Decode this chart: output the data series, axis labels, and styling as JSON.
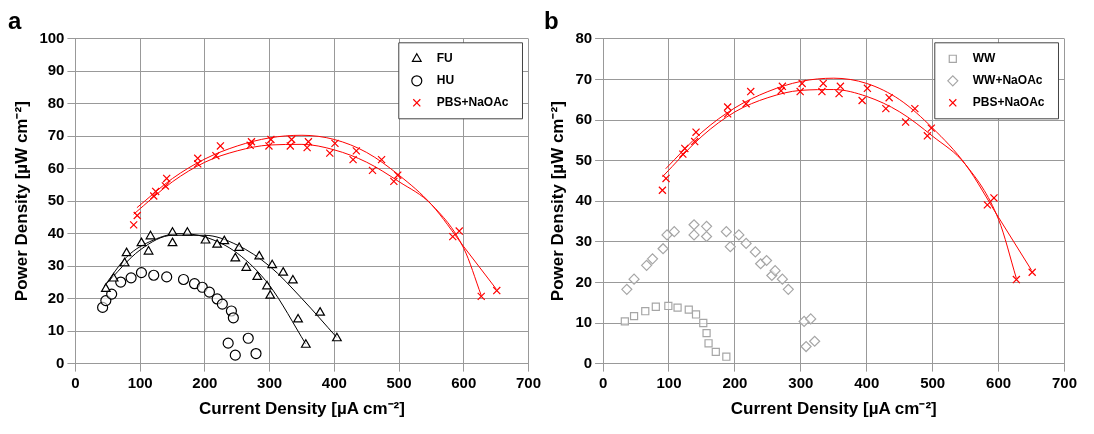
{
  "chart_data": [
    {
      "type": "scatter",
      "title": "a",
      "xlabel": "Current Density [µA cm⁻²]",
      "ylabel": "Power Density [µW cm⁻²]",
      "xlim": [
        0,
        700
      ],
      "xticks": [
        0,
        100,
        200,
        300,
        400,
        500,
        600,
        700
      ],
      "ylim": [
        0,
        100
      ],
      "yticks": [
        0,
        10,
        20,
        30,
        40,
        50,
        60,
        70,
        80,
        90,
        100
      ],
      "grid": true,
      "legend": "top right",
      "series": [
        {
          "name": "FU",
          "marker": "triangle",
          "color": "#000000",
          "x": [
            47,
            59,
            76,
            79,
            102,
            113,
            116,
            150,
            150,
            173,
            201,
            219,
            230,
            247,
            253,
            264,
            284,
            281,
            296,
            304,
            301,
            321,
            336,
            344,
            356,
            378,
            404
          ],
          "values": [
            23,
            26.2,
            30.9,
            34,
            37.1,
            34.5,
            39.2,
            40.3,
            37.1,
            40.3,
            37.9,
            36.6,
            37.7,
            32.4,
            35.6,
            29.5,
            33,
            26.7,
            23.8,
            30.3,
            20.9,
            28,
            25.6,
            13.6,
            5.8,
            15.7,
            7.8
          ]
        },
        {
          "name": "HU",
          "marker": "circle",
          "color": "#000000",
          "x": [
            42,
            47,
            56,
            70,
            86,
            102,
            121,
            141,
            167,
            184,
            196,
            207,
            219,
            227,
            241,
            244,
            236,
            247,
            267,
            279
          ],
          "values": [
            17.3,
            19.4,
            21.4,
            25.1,
            26.4,
            28,
            27.2,
            26.7,
            25.9,
            24.6,
            23.5,
            22,
            19.9,
            18.3,
            16.2,
            14.1,
            6.3,
            2.6,
            7.8,
            3.1
          ]
        },
        {
          "name": "PBS+NaOAc",
          "marker": "cross",
          "color": "#ff0000",
          "x": [
            90,
            95.5,
            121,
            124,
            139,
            141,
            189,
            189,
            217,
            224,
            270,
            272,
            299,
            302,
            332,
            334,
            358,
            360,
            393,
            401,
            429,
            434,
            459,
            473,
            492,
            498,
            583,
            593,
            627,
            651
          ],
          "values": [
            42.7,
            45.6,
            51.6,
            53,
            54.7,
            57,
            61.5,
            63.2,
            64,
            67,
            67.2,
            68.3,
            67,
            69,
            67,
            69,
            66.5,
            68.3,
            64.8,
            67.8,
            62.8,
            65.5,
            59.5,
            62.8,
            56.1,
            58,
            39.1,
            40.8,
            20.7,
            22.5
          ]
        },
        {
          "type": "line",
          "marker": "none",
          "color": "#000000",
          "x": [
            45,
            80,
            120,
            160,
            200,
            250,
            300,
            356
          ],
          "values": [
            24,
            33,
            38,
            40,
            39,
            34,
            24,
            6
          ]
        },
        {
          "type": "line",
          "marker": "none",
          "color": "#000000",
          "x": [
            45,
            100,
            150,
            200,
            250,
            300,
            350,
            404
          ],
          "values": [
            24,
            35,
            39.5,
            39.5,
            36.5,
            30,
            20,
            8
          ]
        },
        {
          "type": "line",
          "marker": "none",
          "color": "#ff0000",
          "x": [
            95,
            150,
            200,
            250,
            300,
            350,
            400,
            450,
            500,
            550,
            600,
            650
          ],
          "values": [
            48,
            57,
            63,
            67,
            69.5,
            70.3,
            69,
            65,
            58,
            49,
            36,
            23
          ]
        },
        {
          "type": "line",
          "marker": "none",
          "color": "#ff0000",
          "x": [
            90,
            150,
            200,
            250,
            300,
            350,
            400,
            450,
            500,
            550,
            600,
            627
          ],
          "values": [
            46,
            56,
            62,
            65.5,
            67.3,
            67.5,
            65.8,
            62,
            56,
            49,
            35.5,
            21
          ]
        }
      ]
    },
    {
      "type": "scatter",
      "title": "b",
      "xlabel": "Current Density [µA cm⁻²]",
      "ylabel": "Power Density [µW cm⁻²]",
      "xlim": [
        0,
        700
      ],
      "xticks": [
        0,
        100,
        200,
        300,
        400,
        500,
        600,
        700
      ],
      "ylim": [
        0,
        80
      ],
      "yticks": [
        0,
        10,
        20,
        30,
        40,
        50,
        60,
        70,
        80
      ],
      "grid": true,
      "legend": "top right",
      "series": [
        {
          "name": "WW",
          "marker": "square",
          "color": "#a6a6a6",
          "x": [
            33,
            47,
            64,
            80,
            99,
            113,
            130,
            141,
            152,
            157,
            160,
            171,
            187
          ],
          "values": [
            10.4,
            11.7,
            12.9,
            14,
            14.2,
            13.8,
            13.3,
            12.1,
            10,
            7.5,
            5,
            2.9,
            1.7
          ]
        },
        {
          "name": "WW+NaOAc",
          "marker": "diamond",
          "color": "#a6a6a6",
          "x": [
            36,
            47,
            66,
            75,
            91,
            97,
            108,
            138,
            138,
            157,
            157,
            187,
            193,
            206,
            217,
            231,
            239,
            248,
            256,
            261,
            272,
            281,
            305,
            308,
            315,
            321
          ],
          "values": [
            18.3,
            20.8,
            24.2,
            25.8,
            28.3,
            31.7,
            32.5,
            34.2,
            31.7,
            33.8,
            31.3,
            32.5,
            28.8,
            31.7,
            29.6,
            27.5,
            24.6,
            25.4,
            21.7,
            22.9,
            20.8,
            18.3,
            10.4,
            4.2,
            11,
            5.5
          ]
        },
        {
          "name": "PBS+NaOAc",
          "marker": "cross",
          "color": "#ff0000",
          "x": [
            90,
            95.5,
            121,
            124,
            139,
            141,
            189,
            189,
            217,
            224,
            270,
            272,
            299,
            302,
            332,
            334,
            358,
            360,
            393,
            401,
            429,
            434,
            459,
            473,
            492,
            498,
            583,
            593,
            627,
            651
          ],
          "values": [
            42.7,
            45.6,
            51.6,
            53,
            54.7,
            57,
            61.5,
            63.2,
            64,
            67,
            67.2,
            68.3,
            67,
            69,
            67,
            69,
            66.5,
            68.3,
            64.8,
            67.8,
            62.8,
            65.5,
            59.5,
            62.8,
            56.1,
            58,
            39.1,
            40.8,
            20.7,
            22.5
          ]
        },
        {
          "type": "line",
          "marker": "none",
          "color": "#ff0000",
          "x": [
            95,
            150,
            200,
            250,
            300,
            350,
            400,
            450,
            500,
            550,
            600,
            650
          ],
          "values": [
            48,
            57,
            63,
            67,
            69.5,
            70.3,
            69,
            65,
            58,
            49,
            36,
            23
          ]
        },
        {
          "type": "line",
          "marker": "none",
          "color": "#ff0000",
          "x": [
            90,
            150,
            200,
            250,
            300,
            350,
            400,
            450,
            500,
            550,
            600,
            627
          ],
          "values": [
            46,
            56,
            62,
            65.5,
            67.3,
            67.5,
            65.8,
            62,
            56,
            49,
            35.5,
            21
          ]
        }
      ]
    }
  ]
}
